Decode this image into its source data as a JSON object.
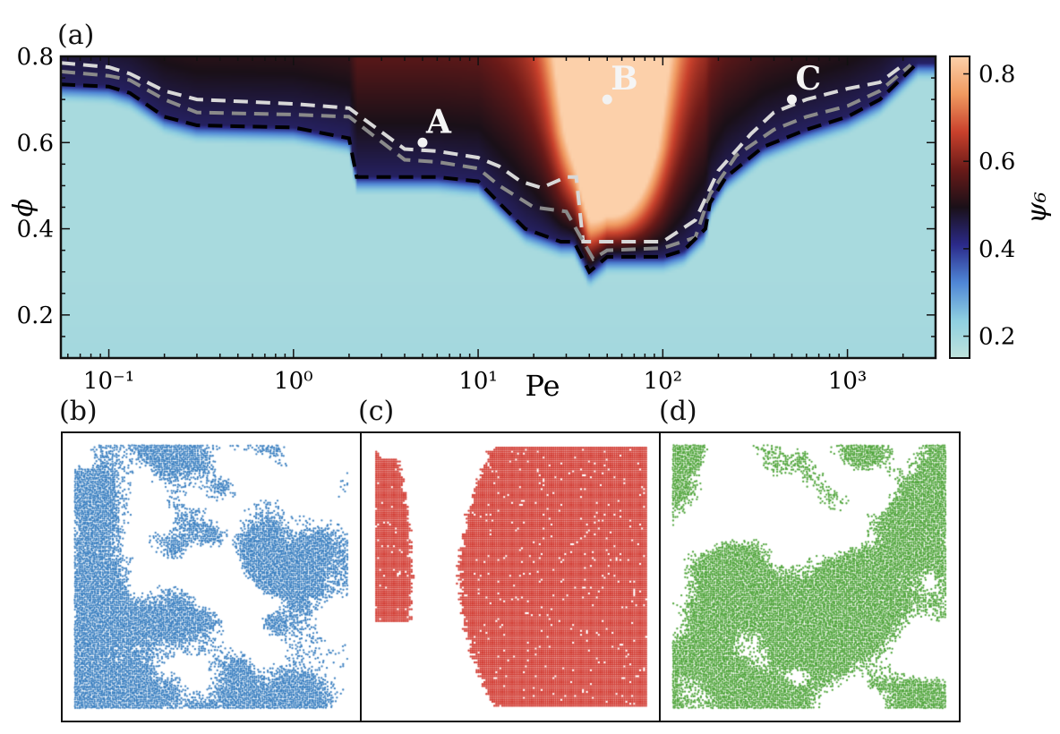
{
  "panels": {
    "a": "(a)",
    "b": "(b)",
    "c": "(c)",
    "d": "(d)"
  },
  "chart_data": {
    "type": "heatmap",
    "title": "",
    "xlabel": "Pe",
    "ylabel": "ϕ",
    "xscale": "log",
    "xlim": [
      0.055,
      3000
    ],
    "ylim": [
      0.1,
      0.8
    ],
    "xticks": [
      {
        "value": 0.1,
        "label": "10⁻¹"
      },
      {
        "value": 1,
        "label": "10⁰"
      },
      {
        "value": 10,
        "label": "10¹"
      },
      {
        "value": 100,
        "label": "10²"
      },
      {
        "value": 1000,
        "label": "10³"
      }
    ],
    "yticks": [
      {
        "value": 0.2,
        "label": "0.2"
      },
      {
        "value": 0.4,
        "label": "0.4"
      },
      {
        "value": 0.6,
        "label": "0.6"
      },
      {
        "value": 0.8,
        "label": "0.8"
      }
    ],
    "colorbar": {
      "label": "ψ₆",
      "range": [
        0.15,
        0.84
      ],
      "ticks": [
        {
          "value": 0.2,
          "label": "0.2"
        },
        {
          "value": 0.4,
          "label": "0.4"
        },
        {
          "value": 0.6,
          "label": "0.6"
        },
        {
          "value": 0.8,
          "label": "0.8"
        }
      ],
      "colors": [
        "#bfe3dc",
        "#8ecfe0",
        "#4f86d6",
        "#2b2a8a",
        "#1a1018",
        "#6a1a18",
        "#c9412c",
        "#f09a60",
        "#fcd0aa"
      ]
    },
    "contours": [
      {
        "color": "#d8d8d8",
        "points": [
          [
            0.055,
            0.785
          ],
          [
            0.1,
            0.775
          ],
          [
            0.13,
            0.76
          ],
          [
            0.2,
            0.72
          ],
          [
            0.3,
            0.7
          ],
          [
            1,
            0.69
          ],
          [
            2,
            0.68
          ],
          [
            4,
            0.585
          ],
          [
            6,
            0.58
          ],
          [
            10,
            0.565
          ],
          [
            13,
            0.545
          ],
          [
            17,
            0.51
          ],
          [
            22,
            0.495
          ],
          [
            30,
            0.52
          ],
          [
            34,
            0.52
          ],
          [
            37,
            0.37
          ],
          [
            45,
            0.37
          ],
          [
            100,
            0.37
          ],
          [
            150,
            0.42
          ],
          [
            200,
            0.535
          ],
          [
            300,
            0.62
          ],
          [
            400,
            0.67
          ],
          [
            600,
            0.7
          ],
          [
            1000,
            0.725
          ],
          [
            1500,
            0.74
          ],
          [
            2000,
            0.78
          ]
        ]
      },
      {
        "color": "#8a8a8a",
        "points": [
          [
            0.055,
            0.765
          ],
          [
            0.1,
            0.755
          ],
          [
            0.13,
            0.745
          ],
          [
            0.2,
            0.7
          ],
          [
            0.3,
            0.67
          ],
          [
            1,
            0.665
          ],
          [
            2,
            0.66
          ],
          [
            4,
            0.56
          ],
          [
            6,
            0.555
          ],
          [
            10,
            0.54
          ],
          [
            13,
            0.5
          ],
          [
            20,
            0.45
          ],
          [
            30,
            0.44
          ],
          [
            36,
            0.38
          ],
          [
            42,
            0.33
          ],
          [
            50,
            0.35
          ],
          [
            100,
            0.355
          ],
          [
            150,
            0.38
          ],
          [
            180,
            0.48
          ],
          [
            250,
            0.57
          ],
          [
            400,
            0.63
          ],
          [
            600,
            0.66
          ],
          [
            1000,
            0.685
          ],
          [
            1500,
            0.72
          ],
          [
            2200,
            0.78
          ]
        ]
      },
      {
        "color": "#000000",
        "points": [
          [
            0.055,
            0.735
          ],
          [
            0.1,
            0.73
          ],
          [
            0.13,
            0.715
          ],
          [
            0.2,
            0.66
          ],
          [
            0.3,
            0.64
          ],
          [
            1,
            0.635
          ],
          [
            2,
            0.61
          ],
          [
            2.2,
            0.52
          ],
          [
            6,
            0.52
          ],
          [
            10,
            0.51
          ],
          [
            13,
            0.46
          ],
          [
            18,
            0.4
          ],
          [
            28,
            0.37
          ],
          [
            33,
            0.37
          ],
          [
            40,
            0.3
          ],
          [
            50,
            0.335
          ],
          [
            100,
            0.335
          ],
          [
            130,
            0.35
          ],
          [
            170,
            0.4
          ],
          [
            180,
            0.46
          ],
          [
            220,
            0.52
          ],
          [
            350,
            0.59
          ],
          [
            600,
            0.63
          ],
          [
            1000,
            0.66
          ],
          [
            1500,
            0.7
          ],
          [
            2400,
            0.785
          ]
        ]
      }
    ],
    "annotations": [
      {
        "label": "A",
        "pe": 5,
        "phi": 0.6
      },
      {
        "label": "B",
        "pe": 50,
        "phi": 0.7
      },
      {
        "label": "C",
        "pe": 500,
        "phi": 0.7
      }
    ]
  },
  "snapshots": [
    {
      "panel": "b",
      "color": "#3a7fc0",
      "point": "A"
    },
    {
      "panel": "c",
      "color": "#d23c33",
      "point": "B"
    },
    {
      "panel": "d",
      "color": "#4fa43a",
      "point": "C"
    }
  ]
}
